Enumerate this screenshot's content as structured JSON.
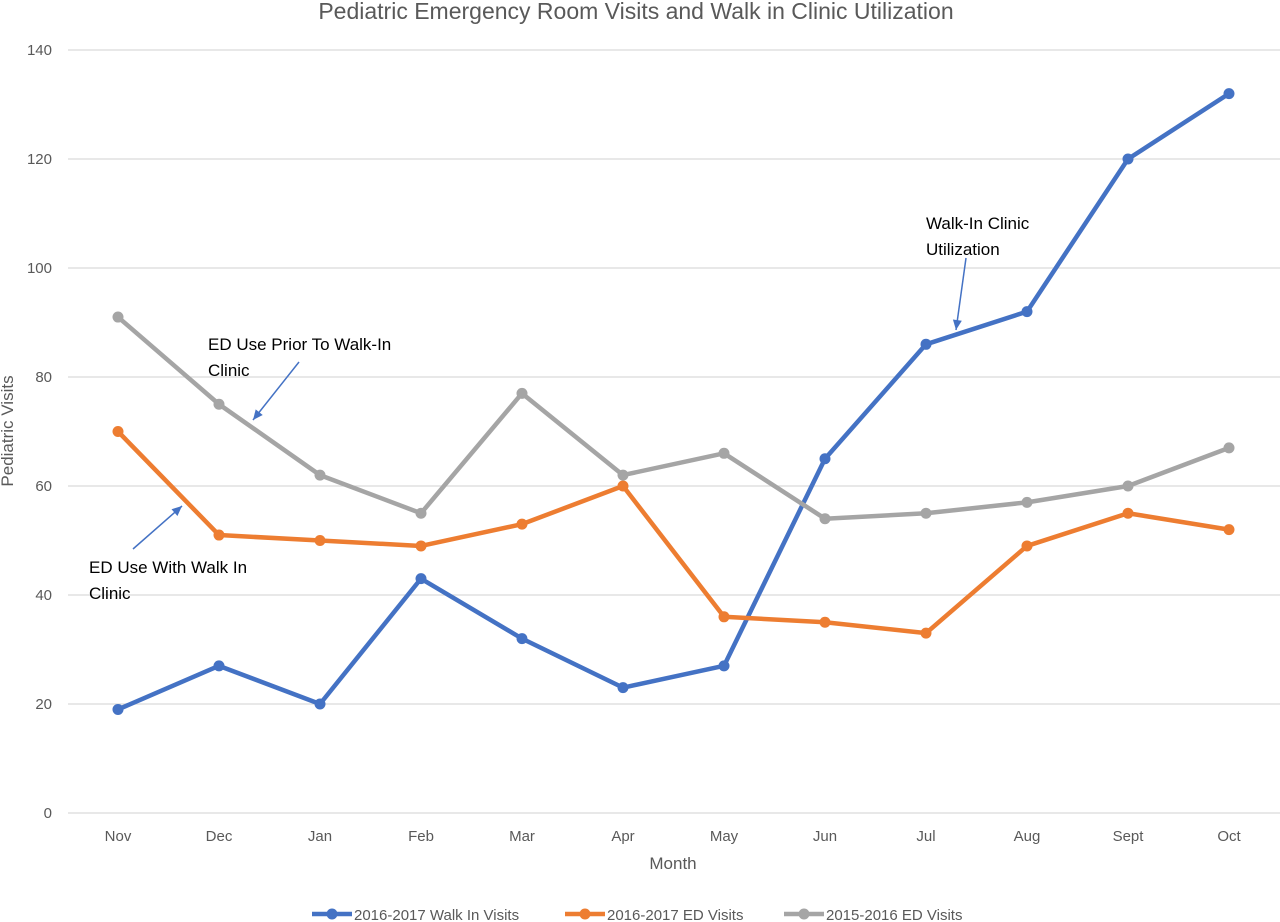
{
  "chart_data": {
    "type": "line",
    "title": "Pediatric Emergency Room Visits and Walk in Clinic Utilization",
    "xlabel": "Month",
    "ylabel": "Pediatric Visits",
    "categories": [
      "Nov",
      "Dec",
      "Jan",
      "Feb",
      "Mar",
      "Apr",
      "May",
      "Jun",
      "Jul",
      "Aug",
      "Sept",
      "Oct"
    ],
    "ylim": [
      0,
      140
    ],
    "yticks": [
      0,
      20,
      40,
      60,
      80,
      100,
      120,
      140
    ],
    "grid": true,
    "legend_position": "bottom",
    "series": [
      {
        "name": "2016-2017 Walk In Visits",
        "color": "#4472c4",
        "values": [
          19,
          27,
          20,
          43,
          32,
          23,
          27,
          65,
          86,
          92,
          120,
          132
        ]
      },
      {
        "name": "2016-2017 ED Visits",
        "color": "#ed7d31",
        "values": [
          70,
          51,
          50,
          49,
          53,
          60,
          36,
          35,
          33,
          49,
          55,
          52
        ]
      },
      {
        "name": "2015-2016 ED Visits",
        "color": "#a5a5a5",
        "values": [
          91,
          75,
          62,
          55,
          77,
          62,
          66,
          54,
          55,
          57,
          60,
          67
        ]
      }
    ],
    "annotations": [
      {
        "lines": [
          "ED Use Prior To Walk-In",
          "Clinic"
        ]
      },
      {
        "lines": [
          "ED Use With Walk In",
          "Clinic"
        ]
      },
      {
        "lines": [
          "Walk-In Clinic",
          "Utilization"
        ]
      }
    ],
    "arrow_color": "#4472c4"
  }
}
